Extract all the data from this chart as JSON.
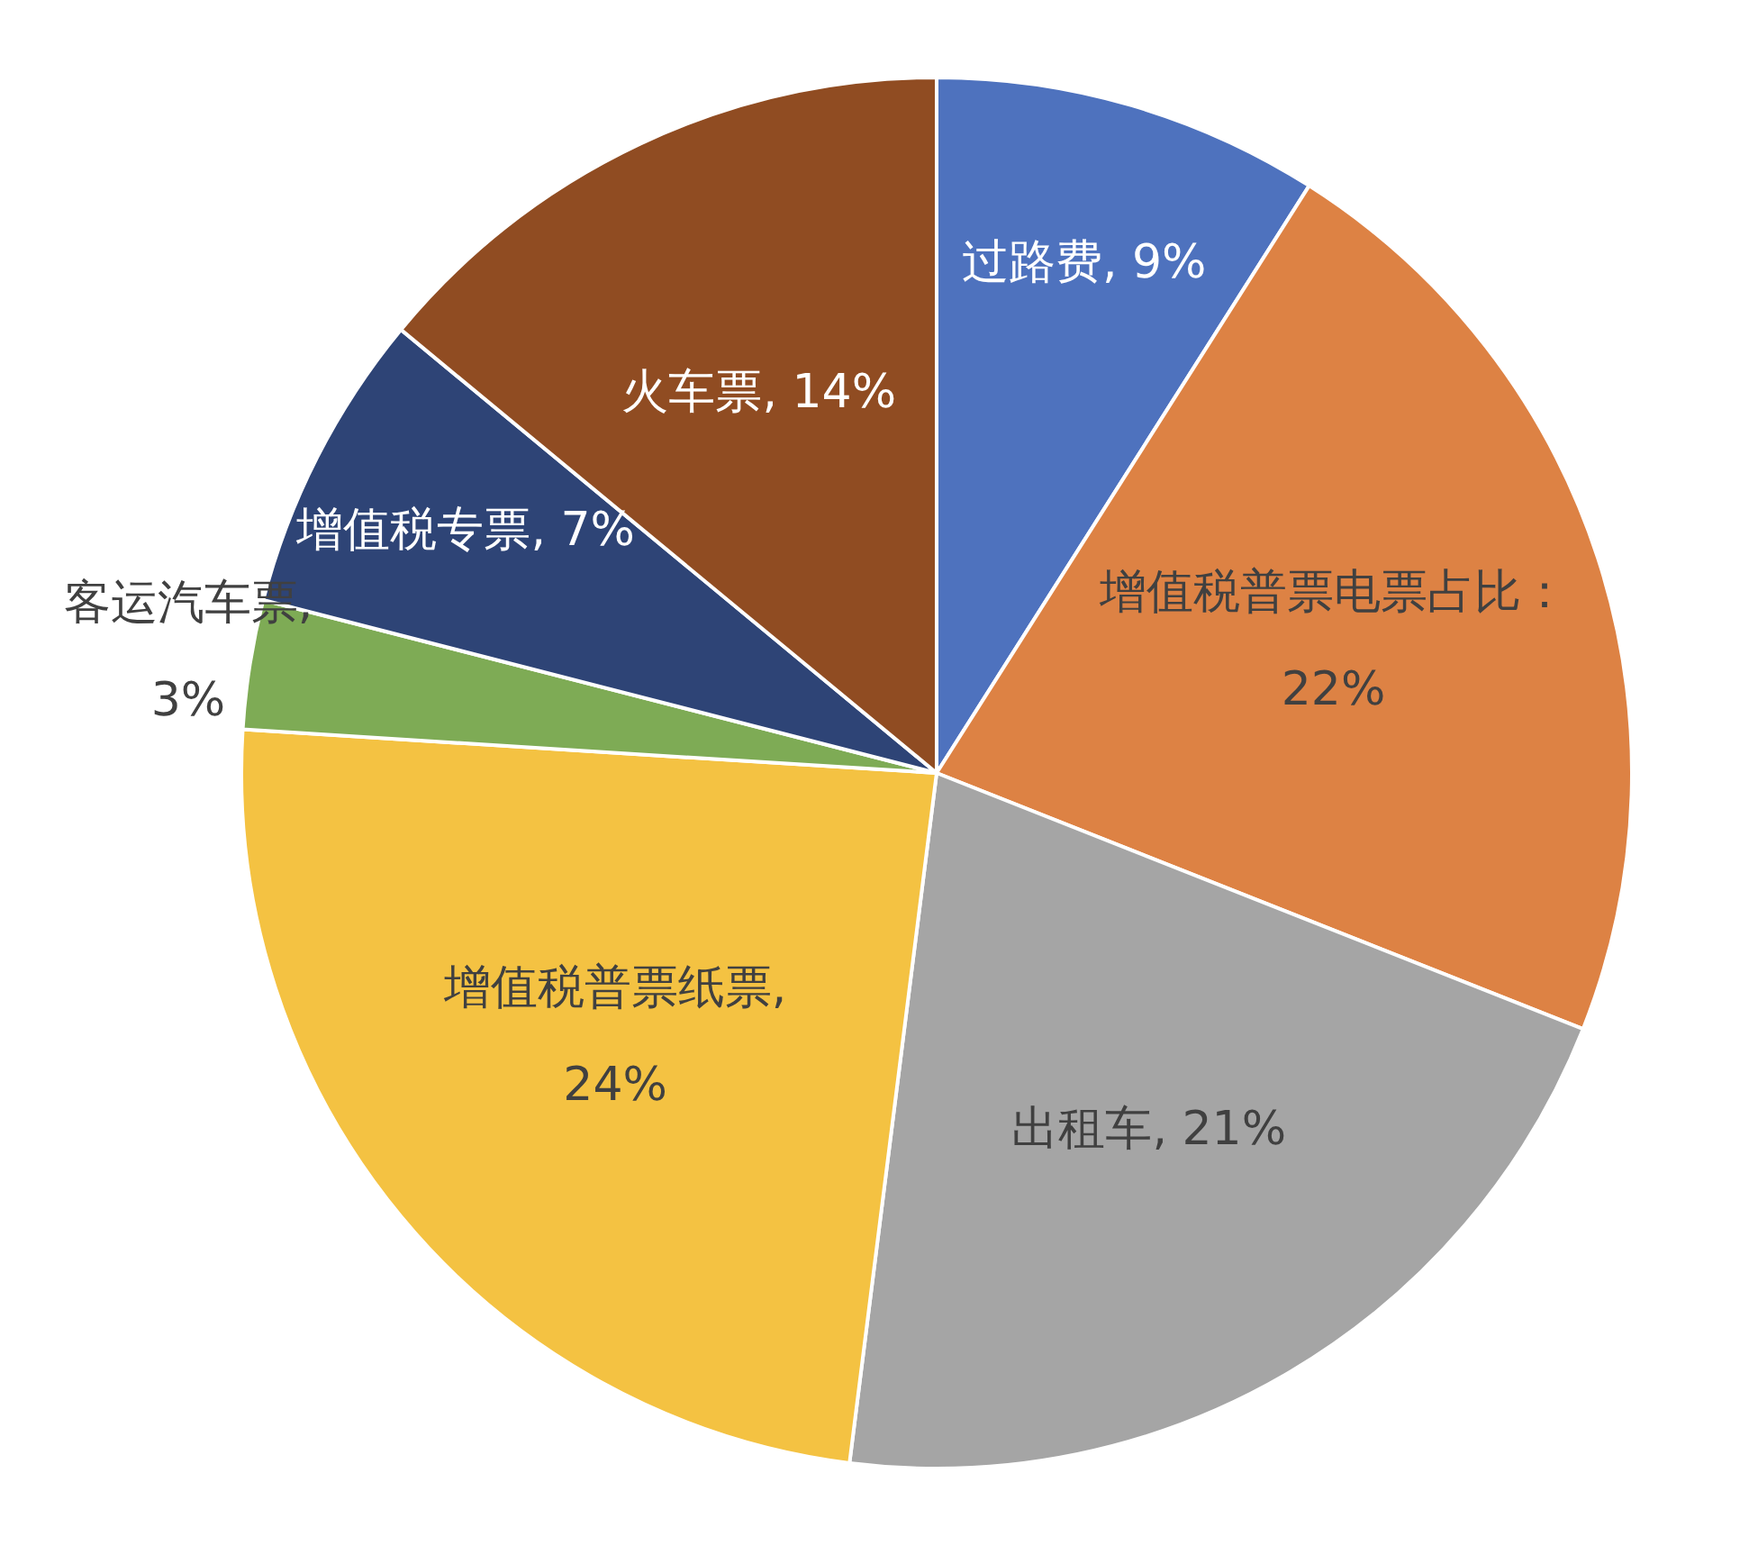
{
  "chart_data": {
    "type": "pie",
    "categories": [
      "过路费",
      "增值税普票电票占比",
      "出租车",
      "增值税普票纸票",
      "客运汽车票",
      "增值税专票",
      "火车票"
    ],
    "values": [
      9,
      22,
      21,
      24,
      3,
      7,
      14
    ],
    "colors": [
      "#4e72be",
      "#dd8244",
      "#a5a5a5",
      "#f4c242",
      "#7eab55",
      "#2e4476",
      "#904c22"
    ],
    "value_labels": [
      ", 9%",
      "：22%",
      ", 21%",
      ", 24%",
      ", 3%",
      ", 7%",
      ", 14%"
    ],
    "legend": false
  }
}
